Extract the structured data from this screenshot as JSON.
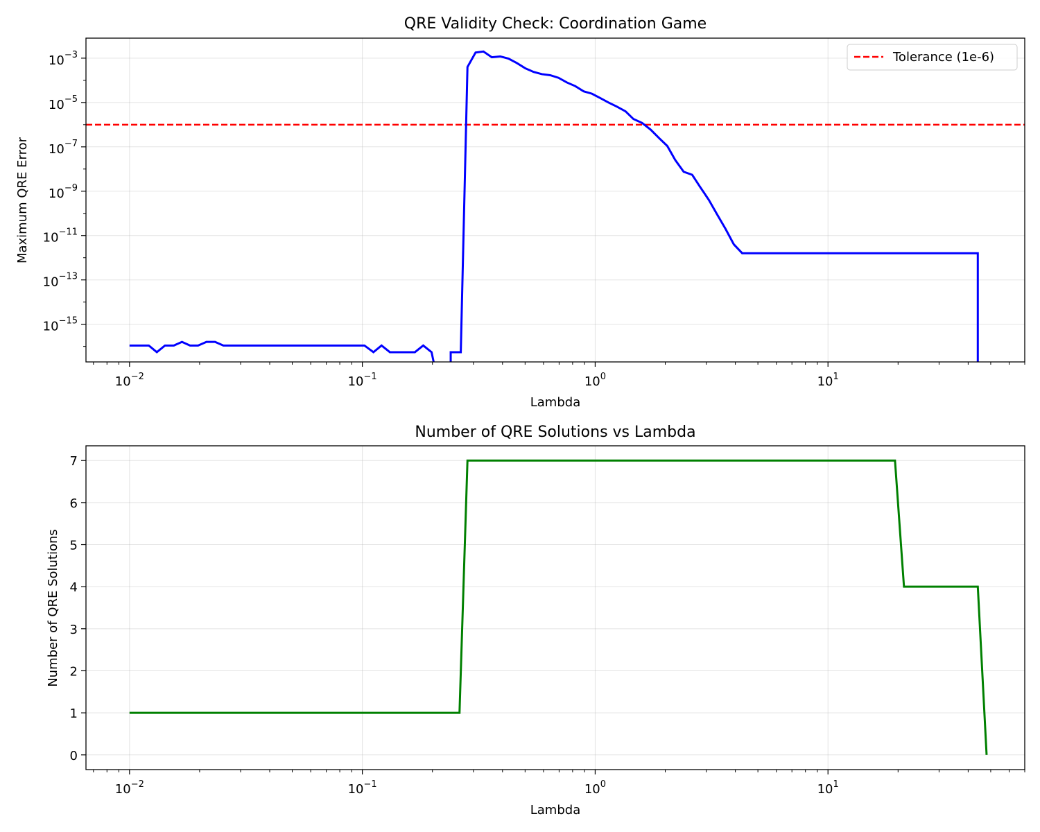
{
  "chart_data": [
    {
      "type": "line",
      "title": "QRE Validity Check: Coordination Game",
      "xlabel": "Lambda",
      "ylabel": "Maximum QRE Error",
      "xscale": "log",
      "yscale": "log",
      "xlim": [
        0.0065,
        70
      ],
      "ylim": [
        2e-17,
        0.008
      ],
      "xticks": [
        {
          "value": 0.01,
          "base": "10",
          "exp": "−2"
        },
        {
          "value": 0.1,
          "base": "10",
          "exp": "−1"
        },
        {
          "value": 1,
          "base": "10",
          "exp": "0"
        },
        {
          "value": 10,
          "base": "10",
          "exp": "1"
        }
      ],
      "yticks": [
        {
          "value": 0.001,
          "base": "10",
          "exp": "−3"
        },
        {
          "value": 1e-05,
          "base": "10",
          "exp": "−5"
        },
        {
          "value": 1e-07,
          "base": "10",
          "exp": "−7"
        },
        {
          "value": 1e-09,
          "base": "10",
          "exp": "−9"
        },
        {
          "value": 1e-11,
          "base": "10",
          "exp": "−11"
        },
        {
          "value": 1e-13,
          "base": "10",
          "exp": "−13"
        },
        {
          "value": 1e-15,
          "base": "10",
          "exp": "−15"
        }
      ],
      "grid": true,
      "legend_position": "top-right",
      "hlines": [
        {
          "name": "Tolerance (1e-6)",
          "y": 1e-06,
          "color": "#ff0000",
          "style": "dashed"
        }
      ],
      "series": [
        {
          "color": "#0000ff",
          "segments": [
            [
              [
                0.01,
                1.1e-16
              ],
              [
                0.0112,
                1.1e-16
              ],
              [
                0.0121,
                1.1e-16
              ],
              [
                0.0131,
                5.5e-17
              ],
              [
                0.0142,
                1.1e-16
              ],
              [
                0.0155,
                1.1e-16
              ],
              [
                0.0168,
                1.6e-16
              ],
              [
                0.0182,
                1.1e-16
              ],
              [
                0.0197,
                1.1e-16
              ],
              [
                0.0214,
                1.6e-16
              ],
              [
                0.0233,
                1.6e-16
              ],
              [
                0.0253,
                1.1e-16
              ],
              [
                0.0273,
                1.1e-16
              ],
              [
                0.05,
                1.1e-16
              ],
              [
                0.08,
                1.1e-16
              ],
              [
                0.1021,
                1.1e-16
              ],
              [
                0.1116,
                5.5e-17
              ],
              [
                0.1209,
                1.1e-16
              ],
              [
                0.1313,
                5.5e-17
              ],
              [
                0.1425,
                5.5e-17
              ],
              [
                0.1548,
                5.5e-17
              ],
              [
                0.1682,
                5.5e-17
              ],
              [
                0.1826,
                1.1e-16
              ],
              [
                0.1983,
                5.5e-17
              ],
              [
                0.2024,
                2e-17
              ]
            ],
            [
              [
                0.2396,
                2e-17
              ],
              [
                0.2396,
                5.5e-17
              ],
              [
                0.2647,
                5.5e-17
              ],
              [
                0.2828,
                0.0004
              ],
              [
                0.3064,
                0.0018
              ],
              [
                0.3312,
                0.002
              ],
              [
                0.3599,
                0.0011
              ],
              [
                0.3909,
                0.0012
              ],
              [
                0.4244,
                0.00095
              ],
              [
                0.461,
                0.0006
              ],
              [
                0.5006,
                0.00035
              ],
              [
                0.5437,
                0.00024
              ],
              [
                0.5903,
                0.00019
              ],
              [
                0.6411,
                0.00017
              ],
              [
                0.6961,
                0.00013
              ],
              [
                0.756,
                8e-05
              ],
              [
                0.8211,
                5.5e-05
              ],
              [
                0.8918,
                3.2e-05
              ],
              [
                0.968,
                2.5e-05
              ],
              [
                1.05,
                1.6e-05
              ],
              [
                1.14,
                1e-05
              ],
              [
                1.24,
                6.5e-06
              ],
              [
                1.35,
                4e-06
              ],
              [
                1.46,
                1.8e-06
              ],
              [
                1.59,
                1.2e-06
              ],
              [
                1.73,
                6e-07
              ],
              [
                1.88,
                2.5e-07
              ],
              [
                2.04,
                1.1e-07
              ],
              [
                2.21,
                2.5e-08
              ],
              [
                2.4,
                7.5e-09
              ],
              [
                2.61,
                5.5e-09
              ],
              [
                2.83,
                1.5e-09
              ],
              [
                3.08,
                4e-10
              ],
              [
                3.34,
                9e-11
              ],
              [
                3.63,
                2e-11
              ],
              [
                3.94,
                4e-12
              ],
              [
                4.28,
                1.6e-12
              ],
              [
                10,
                1.6e-12
              ],
              [
                20,
                1.6e-12
              ],
              [
                44,
                1.6e-12
              ],
              [
                44,
                2e-17
              ]
            ]
          ]
        }
      ]
    },
    {
      "type": "line",
      "title": "Number of QRE Solutions vs Lambda",
      "xlabel": "Lambda",
      "ylabel": "Number of QRE Solutions",
      "xscale": "log",
      "yscale": "linear",
      "xlim": [
        0.0065,
        70
      ],
      "ylim": [
        -0.35,
        7.35
      ],
      "xticks": [
        {
          "value": 0.01,
          "base": "10",
          "exp": "−2"
        },
        {
          "value": 0.1,
          "base": "10",
          "exp": "−1"
        },
        {
          "value": 1,
          "base": "10",
          "exp": "0"
        },
        {
          "value": 10,
          "base": "10",
          "exp": "1"
        }
      ],
      "yticks": [
        {
          "value": 0,
          "label": "0"
        },
        {
          "value": 1,
          "label": "1"
        },
        {
          "value": 2,
          "label": "2"
        },
        {
          "value": 3,
          "label": "3"
        },
        {
          "value": 4,
          "label": "4"
        },
        {
          "value": 5,
          "label": "5"
        },
        {
          "value": 6,
          "label": "6"
        },
        {
          "value": 7,
          "label": "7"
        }
      ],
      "grid": true,
      "series": [
        {
          "color": "#008000",
          "segments": [
            [
              [
                0.01,
                1
              ],
              [
                0.2614,
                1
              ],
              [
                0.2828,
                7
              ],
              [
                19.4,
                7
              ],
              [
                21.2,
                4
              ],
              [
                44,
                4
              ],
              [
                48,
                0
              ]
            ]
          ]
        }
      ]
    }
  ]
}
